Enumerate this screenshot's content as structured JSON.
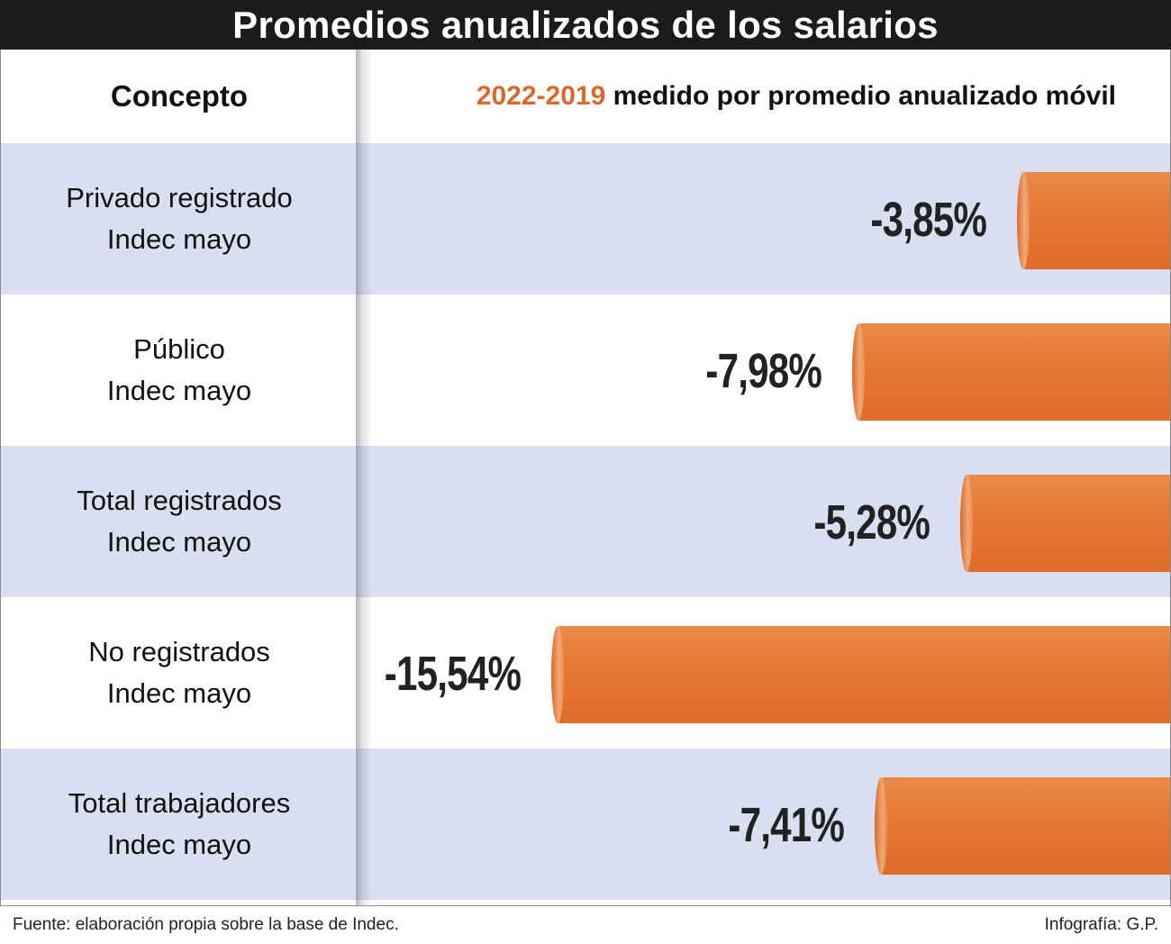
{
  "title": "Promedios anualizados de los salarios",
  "header": {
    "concepto": "Concepto",
    "metric_accent": "2022-2019",
    "metric_rest": " medido por promedio anualizado móvil"
  },
  "colors": {
    "bar": "#e77a35",
    "accent": "#d9692c",
    "shaded_row": "#d9dff1",
    "title_bg": "#1b1b1b"
  },
  "chart_data": {
    "type": "bar",
    "orientation": "horizontal",
    "direction": "right-anchored",
    "title": "Promedios anualizados de los salarios",
    "categories": [
      "Privado registrado Indec mayo",
      "Público Indec mayo",
      "Total registrados Indec mayo",
      "No registrados Indec mayo",
      "Total trabajadores Indec mayo"
    ],
    "values": [
      -3.85,
      -7.98,
      -5.28,
      -15.54,
      -7.41
    ],
    "unit": "%",
    "grid": false,
    "legend": "none",
    "rows": [
      {
        "line1": "Privado registrado",
        "line2": "Indec mayo",
        "value": -3.85,
        "value_label": "-3,85%"
      },
      {
        "line1": "Público",
        "line2": "Indec mayo",
        "value": -7.98,
        "value_label": "-7,98%"
      },
      {
        "line1": "Total registrados",
        "line2": "Indec mayo",
        "value": -5.28,
        "value_label": "-5,28%"
      },
      {
        "line1": "No registrados",
        "line2": "Indec mayo",
        "value": -15.54,
        "value_label": "-15,54%"
      },
      {
        "line1": "Total trabajadores",
        "line2": "Indec mayo",
        "value": -7.41,
        "value_label": "-7,41%"
      }
    ]
  },
  "footer": {
    "source": "Fuente: elaboración propia sobre la base de Indec.",
    "credit": "Infografía: G.P."
  }
}
